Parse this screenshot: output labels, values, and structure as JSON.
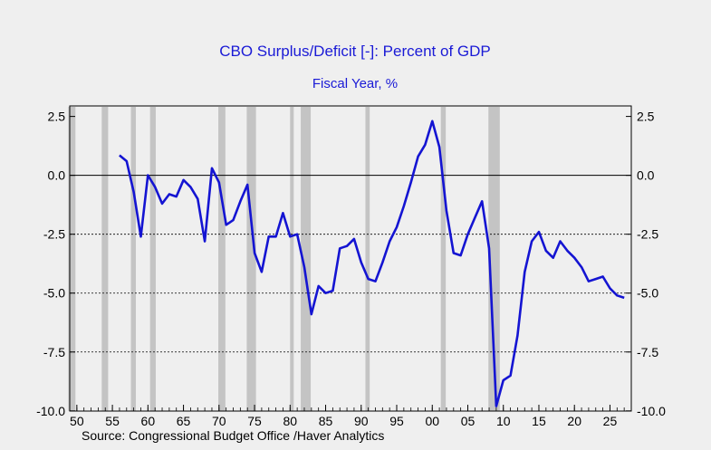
{
  "chart_data": {
    "type": "line",
    "title": "CBO Surplus/Deficit [-]: Percent of GDP",
    "subtitle": "Fiscal Year, %",
    "source": "Source:  Congressional Budget Office /Haver Analytics",
    "y_ticks": [
      "2.5",
      "0.0",
      "-2.5",
      "-5.0",
      "-7.5",
      "-10.0"
    ],
    "y_tick_values": [
      2.5,
      0.0,
      -2.5,
      -5.0,
      -7.5,
      -10.0
    ],
    "x_ticks": [
      "50",
      "55",
      "60",
      "65",
      "70",
      "75",
      "80",
      "85",
      "90",
      "95",
      "00",
      "05",
      "10",
      "15",
      "20",
      "25"
    ],
    "x_tick_values": [
      1950,
      1955,
      1960,
      1965,
      1970,
      1975,
      1980,
      1985,
      1990,
      1995,
      2000,
      2005,
      2010,
      2015,
      2020,
      2025
    ],
    "xlim": [
      1949,
      2028
    ],
    "ylim": [
      -10.2,
      2.6
    ],
    "gridlines_dashed": [
      -2.5,
      -5.0,
      -7.5
    ],
    "zero_line": 0.0,
    "recessions": [
      [
        1948.8,
        1949.8
      ],
      [
        1953.5,
        1954.4
      ],
      [
        1957.6,
        1958.3
      ],
      [
        1960.3,
        1961.1
      ],
      [
        1969.9,
        1970.9
      ],
      [
        1973.9,
        1975.2
      ],
      [
        1980.0,
        1980.5
      ],
      [
        1981.5,
        1982.9
      ],
      [
        1990.6,
        1991.2
      ],
      [
        2001.2,
        2001.9
      ],
      [
        2007.9,
        2009.5
      ]
    ],
    "series": [
      {
        "color": "#1414d2",
        "x": [
          1956,
          1957,
          1958,
          1959,
          1960,
          1961,
          1962,
          1963,
          1964,
          1965,
          1966,
          1967,
          1968,
          1969,
          1970,
          1971,
          1972,
          1973,
          1974,
          1975,
          1976,
          1977,
          1978,
          1979,
          1980,
          1981,
          1982,
          1983,
          1984,
          1985,
          1986,
          1987,
          1988,
          1989,
          1990,
          1991,
          1992,
          1993,
          1994,
          1995,
          1996,
          1997,
          1998,
          1999,
          2000,
          2001,
          2002,
          2003,
          2004,
          2005,
          2006,
          2007,
          2008,
          2009,
          2010,
          2011,
          2012,
          2013,
          2014,
          2015,
          2016,
          2017,
          2018,
          2019,
          2020,
          2021,
          2022,
          2023,
          2024,
          2025,
          2026,
          2027
        ],
        "values": [
          0.85,
          0.6,
          -0.7,
          -2.6,
          0.0,
          -0.5,
          -1.2,
          -0.8,
          -0.9,
          -0.2,
          -0.5,
          -1.0,
          -2.8,
          0.3,
          -0.3,
          -2.1,
          -1.9,
          -1.1,
          -0.4,
          -3.3,
          -4.1,
          -2.6,
          -2.6,
          -1.6,
          -2.6,
          -2.5,
          -3.9,
          -5.9,
          -4.7,
          -5.0,
          -4.9,
          -3.1,
          -3.0,
          -2.7,
          -3.7,
          -4.4,
          -4.5,
          -3.7,
          -2.8,
          -2.2,
          -1.3,
          -0.3,
          0.8,
          1.3,
          2.3,
          1.2,
          -1.5,
          -3.3,
          -3.4,
          -2.5,
          -1.8,
          -1.1,
          -3.1,
          -9.8,
          -8.7,
          -8.5,
          -6.8,
          -4.1,
          -2.8,
          -2.4,
          -3.2,
          -3.5,
          -2.8,
          -3.2,
          -3.5,
          -3.9,
          -4.5,
          -4.4,
          -4.3,
          -4.8,
          -5.1,
          -5.2
        ]
      }
    ]
  }
}
